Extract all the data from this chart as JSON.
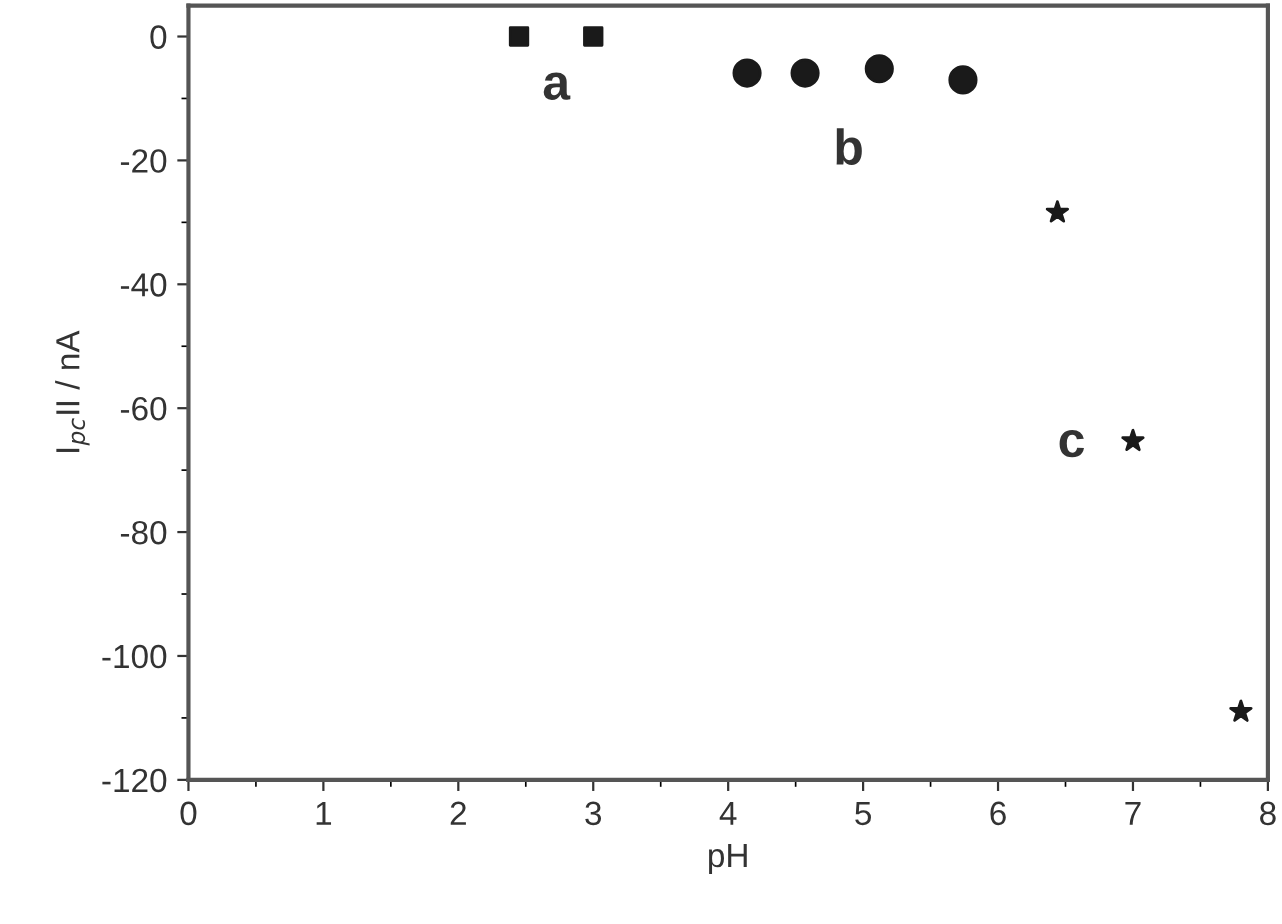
{
  "chart_data": {
    "type": "scatter",
    "xlabel": "pH",
    "ylabel": "I$_{pc}$II / nA",
    "xlim": [
      0,
      8
    ],
    "xticks": [
      0,
      1,
      2,
      3,
      4,
      5,
      6,
      7,
      8
    ],
    "ylim": [
      -120,
      5
    ],
    "yticks": [
      -120,
      -100,
      -80,
      -60,
      -40,
      -20,
      0
    ],
    "grid": false,
    "legend": false,
    "series": [
      {
        "color": "#1a1a1a",
        "marker": "square",
        "x": [
          2.45,
          3.0
        ],
        "values": [
          0,
          0
        ]
      },
      {
        "color": "#1a1a1a",
        "marker": "circle",
        "x": [
          4.14,
          4.57,
          5.12,
          5.74
        ],
        "values": [
          -5.9,
          -5.9,
          -5.2,
          -7.0
        ]
      },
      {
        "color": "#1a1a1a",
        "marker": "star",
        "x": [
          6.44,
          7.0,
          7.8
        ],
        "values": [
          -28.4,
          -65.3,
          -109
        ]
      }
    ],
    "annotations": [
      "a",
      "b",
      "c"
    ]
  }
}
